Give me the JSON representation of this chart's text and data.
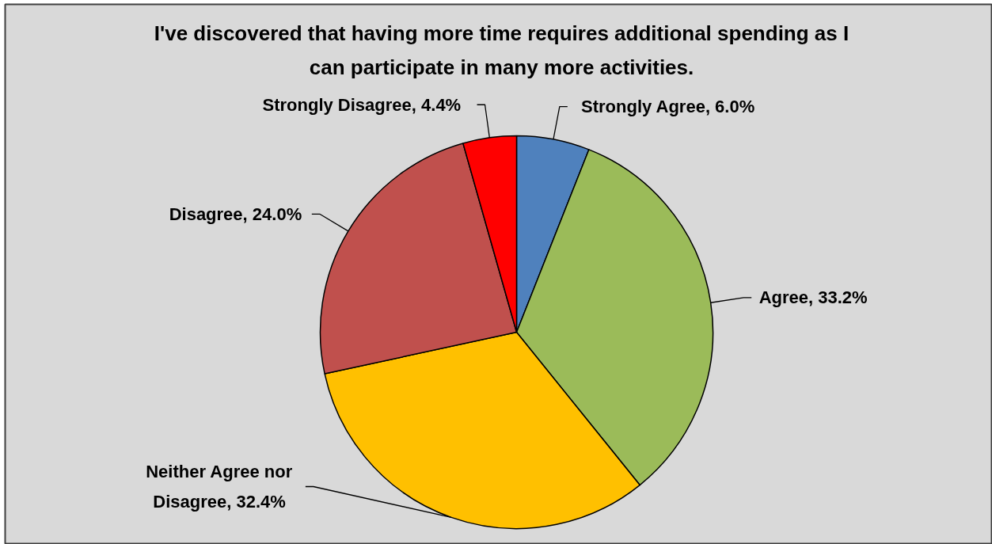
{
  "chart_data": {
    "type": "pie",
    "title": "I've discovered that having more time requires additional spending as I can participate in many more activities.",
    "categories": [
      "Strongly Agree",
      "Agree",
      "Neither Agree nor Disagree",
      "Disagree",
      "Strongly Disagree"
    ],
    "values": [
      6.0,
      33.2,
      32.4,
      24.0,
      4.4
    ],
    "colors": [
      "#4f81bd",
      "#9bbb59",
      "#ffc000",
      "#c0504d",
      "#ff0000"
    ],
    "value_labels": [
      "6.0%",
      "33.2%",
      "32.4%",
      "24.0%",
      "4.4%"
    ]
  }
}
